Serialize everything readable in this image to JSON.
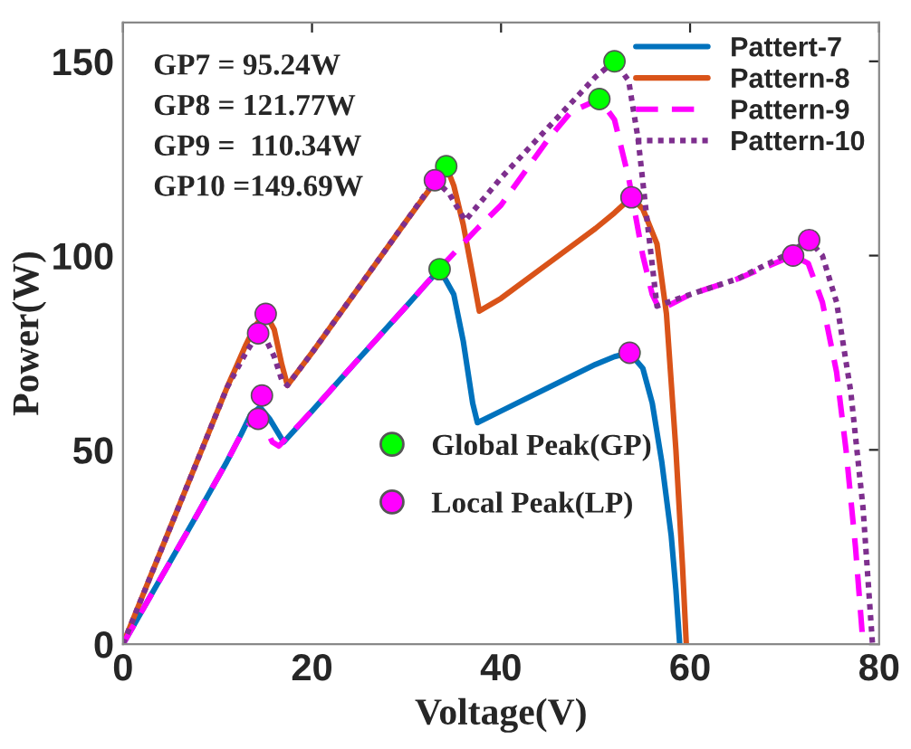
{
  "chart_data": {
    "type": "line",
    "xlabel": "Voltage(V)",
    "ylabel": "Power(W)",
    "xlim": [
      0,
      80
    ],
    "ylim": [
      0,
      160
    ],
    "xticks": [
      0,
      20,
      40,
      60,
      80
    ],
    "yticks": [
      0,
      50,
      100,
      150
    ],
    "grid": false,
    "legend": "top right",
    "annotations": [
      "GP7 = 95.24W",
      "GP8 = 121.77W",
      "GP9 =  110.34W",
      "GP10 =149.69W"
    ],
    "series": [
      {
        "name": "Pattert-7",
        "color": "#0072bd",
        "line_style": "solid",
        "x": [
          0,
          4,
          8,
          11,
          12.5,
          13.5,
          14.5,
          15.5,
          16.5,
          17,
          20,
          25,
          30,
          32,
          33.5,
          35,
          36,
          37,
          37.5,
          40,
          45,
          50,
          52,
          53.6,
          55,
          56,
          57,
          58,
          58.5,
          58.9
        ],
        "values": [
          0,
          17,
          34,
          47,
          54,
          59,
          61,
          58,
          54,
          52,
          60,
          73.6,
          87,
          92.5,
          96.5,
          90,
          78,
          62,
          57,
          60,
          66,
          72,
          74,
          75,
          71,
          62,
          47,
          28,
          14,
          0
        ]
      },
      {
        "name": "Pattern-8",
        "color": "#d95319",
        "line_style": "solid",
        "x": [
          0,
          4,
          8,
          11,
          13,
          14,
          15.1,
          16,
          16.8,
          17.4,
          20,
          25,
          30,
          32,
          34.2,
          35,
          36,
          37,
          37.7,
          40,
          45,
          50,
          52,
          53.8,
          55,
          56.5,
          57.5,
          58.5,
          59.2,
          59.6
        ],
        "values": [
          0,
          24,
          48,
          66,
          77,
          82,
          85,
          81,
          72,
          66.6,
          75,
          92,
          109,
          115.6,
          123,
          118,
          108,
          95,
          85.7,
          89,
          98,
          107,
          111,
          115,
          112,
          103,
          85,
          50,
          20,
          0
        ]
      },
      {
        "name": "Pattern-9",
        "color": "#ff00ff",
        "line_style": "dashed",
        "x": [
          0,
          4,
          8,
          11,
          12.5,
          13.5,
          14.3,
          15,
          15.8,
          16.5,
          20,
          25,
          30,
          33.8,
          37.5,
          40,
          45,
          47.4,
          50.4,
          52,
          53.5,
          55,
          56,
          56.8,
          60,
          65,
          70.9,
          72.5,
          74,
          75.5,
          76.5,
          77.5,
          78.3
        ],
        "values": [
          0,
          17,
          34,
          47,
          54,
          57,
          58,
          56,
          52,
          51,
          60,
          73.6,
          87,
          97.5,
          107,
          113,
          130,
          137,
          140.3,
          135,
          120,
          100,
          90,
          86,
          90,
          94,
          100,
          98,
          88,
          70,
          50,
          25,
          0
        ]
      },
      {
        "name": "Pattern-10",
        "color": "#7e2f8e",
        "line_style": "dotted",
        "x": [
          0,
          4,
          8,
          11,
          13,
          14.3,
          15,
          16,
          16.8,
          17.4,
          20,
          25,
          30,
          33,
          34.5,
          36.2,
          40,
          45,
          50,
          52,
          53.5,
          54.5,
          55.5,
          56.5,
          60,
          65,
          70,
          72.6,
          74,
          75.5,
          77,
          78.3,
          79.3
        ],
        "values": [
          0,
          24,
          48,
          66,
          75,
          80,
          79,
          74,
          68,
          66.6,
          75,
          92,
          109,
          119.4,
          116,
          109,
          120,
          133,
          146,
          150,
          145,
          130,
          108,
          87,
          90,
          94,
          100,
          104,
          100,
          88,
          65,
          35,
          0
        ]
      },
      {
        "name": "Global Peak(GP)",
        "type": "scatter",
        "marker": "circle",
        "color": "#00ff00",
        "x": [
          33.5,
          34.2,
          50.4,
          52
        ],
        "values": [
          96.5,
          123,
          140.3,
          150
        ]
      },
      {
        "name": "Local Peak(LP)",
        "type": "scatter",
        "marker": "circle",
        "color": "#ff00ff",
        "x": [
          14.7,
          14.3,
          15.1,
          14.3,
          33,
          53.6,
          53.8,
          70.9,
          72.6
        ],
        "values": [
          64,
          58,
          85,
          80,
          119.4,
          75,
          115,
          100,
          104
        ]
      }
    ]
  }
}
